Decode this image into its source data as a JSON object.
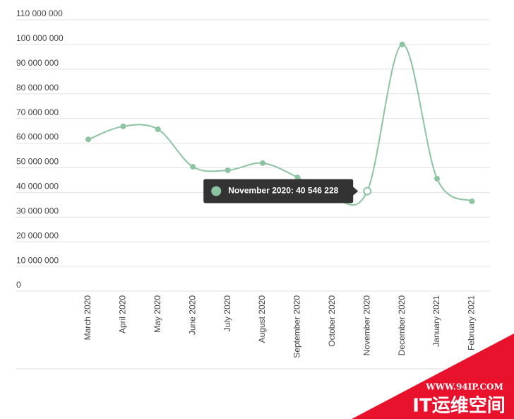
{
  "chart_data": {
    "type": "line",
    "categories": [
      "March 2020",
      "April 2020",
      "May 2020",
      "June 2020",
      "July 2020",
      "August 2020",
      "September 2020",
      "October 2020",
      "November 2020",
      "December 2020",
      "January 2021",
      "February 2021"
    ],
    "series": [
      {
        "color": "#8cc3a1",
        "values": [
          61500000,
          66800000,
          65600000,
          50400000,
          49000000,
          51900000,
          46100000,
          38000000,
          40546228,
          100000000,
          45600000,
          36400000
        ]
      }
    ],
    "ylim": [
      0,
      110000000
    ],
    "yticks": [
      {
        "value": 0,
        "label": "0"
      },
      {
        "value": 10000000,
        "label": "10 000 000"
      },
      {
        "value": 20000000,
        "label": "20 000 000"
      },
      {
        "value": 30000000,
        "label": "30 000 000"
      },
      {
        "value": 40000000,
        "label": "40 000 000"
      },
      {
        "value": 50000000,
        "label": "50 000 000"
      },
      {
        "value": 60000000,
        "label": "60 000 000"
      },
      {
        "value": 70000000,
        "label": "70 000 000"
      },
      {
        "value": 80000000,
        "label": "80 000 000"
      },
      {
        "value": 90000000,
        "label": "90 000 000"
      },
      {
        "value": 100000000,
        "label": "100 000 000"
      },
      {
        "value": 110000000,
        "label": "110 000 000"
      }
    ],
    "grid": true,
    "tooltip": {
      "index": 8,
      "text": "November 2020: 40 546 228"
    }
  },
  "watermark": {
    "url": "WWW.94IP.COM",
    "name": "IT运维空间"
  }
}
